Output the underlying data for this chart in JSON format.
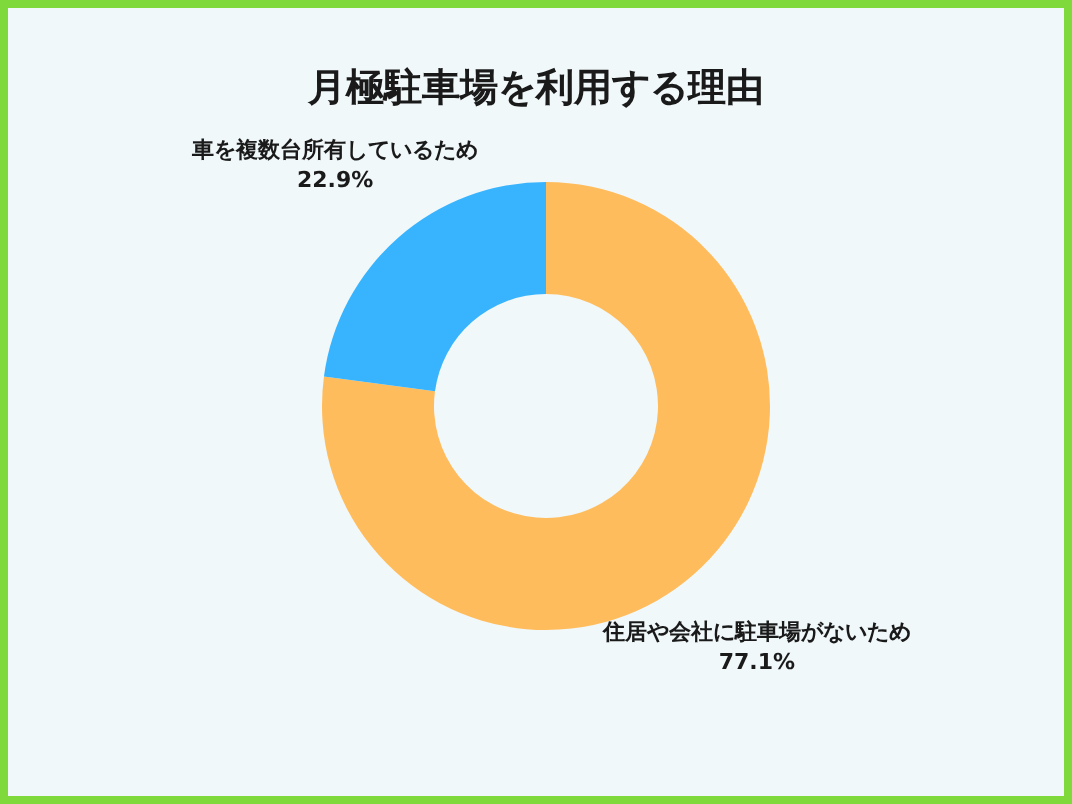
{
  "chart_data": {
    "type": "donut",
    "title": "月極駐車場を利用する理由",
    "categories": [
      "住居や会社に駐車場がないため",
      "車を複数台所有しているため"
    ],
    "values": [
      77.1,
      22.9
    ],
    "colors": [
      "#ffbc5c",
      "#38b4fe"
    ],
    "value_labels": [
      "77.1%",
      "22.9%"
    ],
    "legend": false
  }
}
